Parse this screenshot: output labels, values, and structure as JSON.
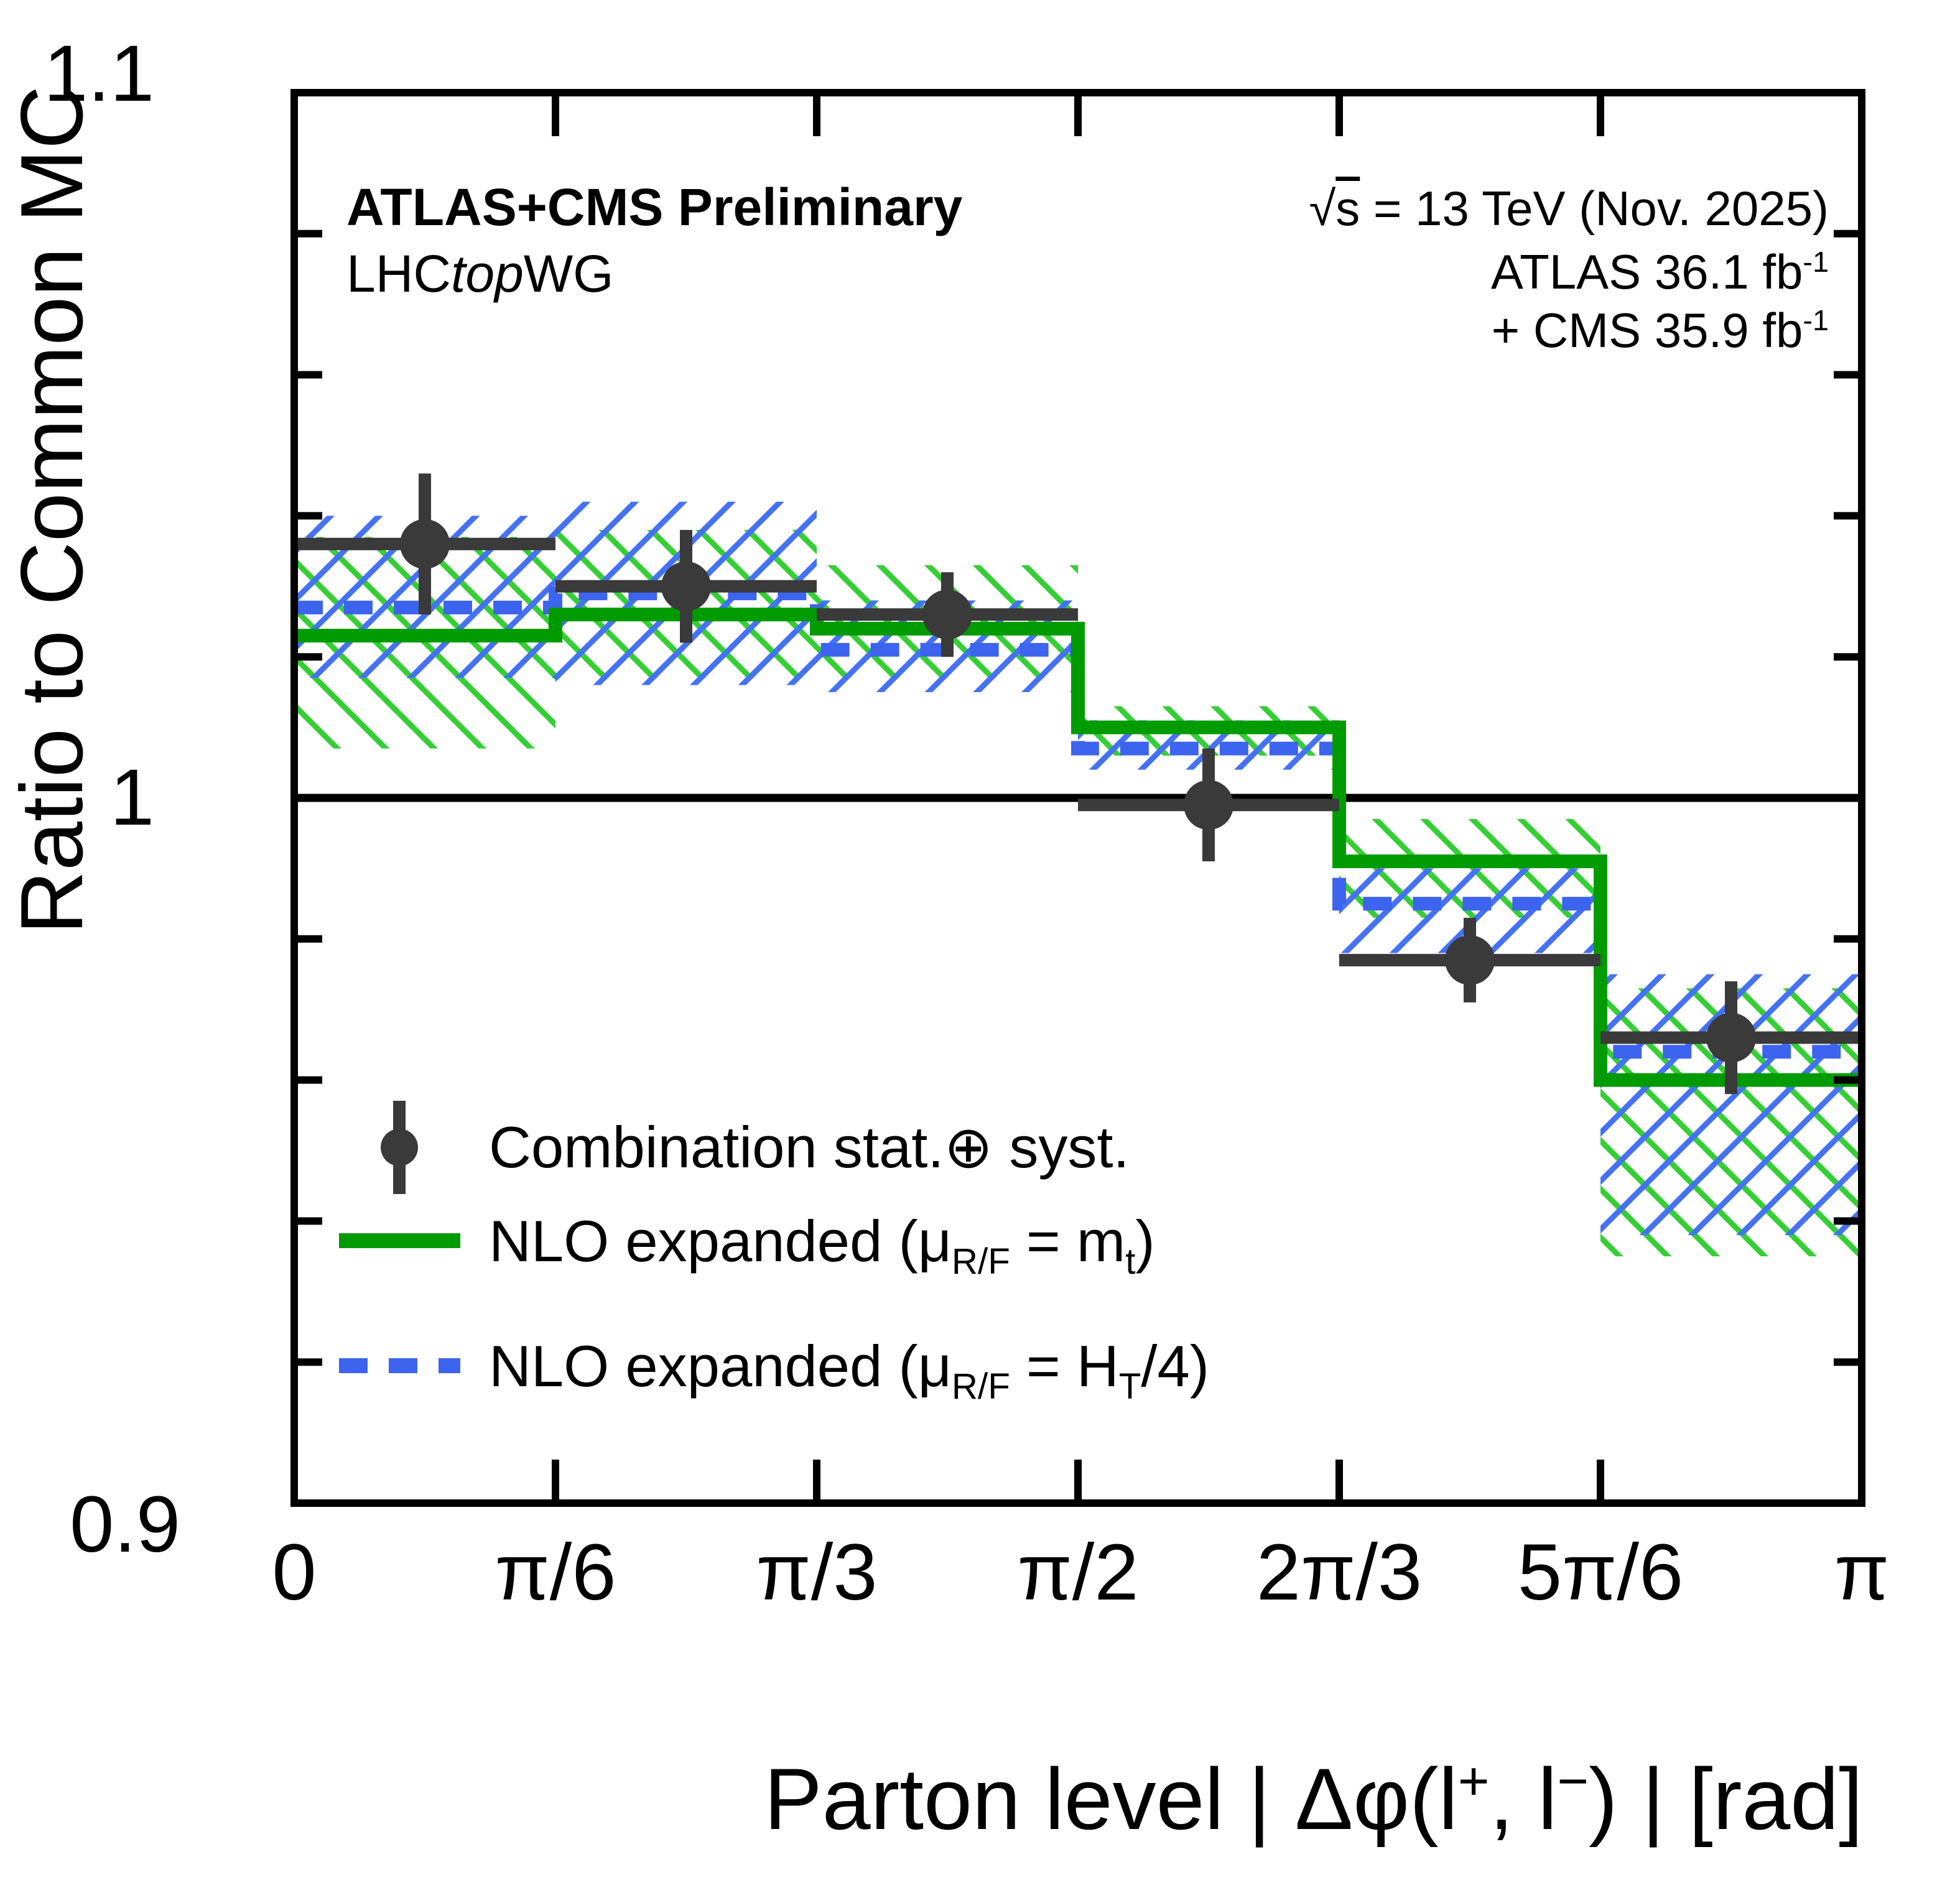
{
  "figure": {
    "header_left": {
      "line1": "ATLAS+CMS Preliminary",
      "line2_pre": "LHC",
      "line2_italic": "top",
      "line2_post": "WG"
    },
    "header_right": {
      "sqrt_sym": "√",
      "sqrt_arg": "s",
      "line1_rest": " = 13 TeV (Nov. 2025)",
      "line2_text": "ATLAS 36.1 fb",
      "line2_sup": "-1",
      "line3_text": "+ CMS 35.9 fb",
      "line3_sup": "-1"
    },
    "legend": [
      {
        "label": "Combination stat.⊕ syst."
      },
      {
        "label_pre": "NLO expanded (μ",
        "label_sub1": "R/F",
        "label_mid": " = m",
        "label_sub2": "t",
        "label_post": ")"
      },
      {
        "label_pre": "NLO expanded (μ",
        "label_sub1": "R/F",
        "label_mid": " = H",
        "label_sub2": "T",
        "label_post": "/4)"
      }
    ]
  },
  "chart_data": {
    "type": "line",
    "subtype": "ratio-step-histogram-with-hatched-bands-and-points",
    "title": "",
    "ylabel": "Ratio to Common MC",
    "xlabel_parts": {
      "pA": "Parton level | Δφ(l",
      "supPlus": "+",
      "pB": ", l",
      "supMinus": "−",
      "pC": ") | [rad]"
    },
    "ylim": [
      0.9,
      1.1
    ],
    "y_tick_labels": [
      "1.1",
      "1",
      "0.9"
    ],
    "y_major_ticks": [
      1.1,
      1.0,
      0.9
    ],
    "y_minor_tick_step": 0.02,
    "x_tick_labels": [
      "0",
      "π/6",
      "π/3",
      "π/2",
      "2π/3",
      "5π/6",
      "π"
    ],
    "bin_edges_rad": [
      0,
      0.5236,
      1.0472,
      1.5708,
      2.0944,
      2.618,
      3.1416
    ],
    "reference_line_y": 1.0,
    "grid": false,
    "legend_position": "upper-left-inside-lower-half",
    "series": [
      {
        "name": "Combination stat.⊕ syst.",
        "type": "points",
        "color": "#3a3a3a",
        "values": [
          1.036,
          1.03,
          1.026,
          0.999,
          0.977,
          0.966
        ],
        "err_up": [
          0.01,
          0.008,
          0.006,
          0.008,
          0.006,
          0.008
        ],
        "err_down": [
          0.01,
          0.008,
          0.006,
          0.008,
          0.006,
          0.008
        ]
      },
      {
        "name": "NLO expanded (μ_R/F = m_t)",
        "type": "step",
        "line_style": "solid",
        "color": "#009b00",
        "band_hatch_color": "#35cf35",
        "band_hatch_direction": "backslash",
        "values": [
          1.023,
          1.026,
          1.024,
          1.01,
          0.991,
          0.96
        ],
        "band_lo": [
          1.007,
          1.017,
          1.017,
          1.006,
          0.983,
          0.935
        ],
        "band_hi": [
          1.037,
          1.038,
          1.033,
          1.013,
          0.997,
          0.973
        ]
      },
      {
        "name": "NLO expanded (μ_R/F = H_T/4)",
        "type": "step",
        "line_style": "dashed",
        "color": "#3d64ef",
        "band_hatch_color": "#4472f2",
        "band_hatch_direction": "slash",
        "values": [
          1.027,
          1.029,
          1.021,
          1.007,
          0.985,
          0.964
        ],
        "band_lo": [
          1.017,
          1.016,
          1.015,
          1.004,
          0.978,
          0.938
        ],
        "band_hi": [
          1.04,
          1.042,
          1.028,
          1.011,
          0.99,
          0.975
        ]
      }
    ]
  }
}
